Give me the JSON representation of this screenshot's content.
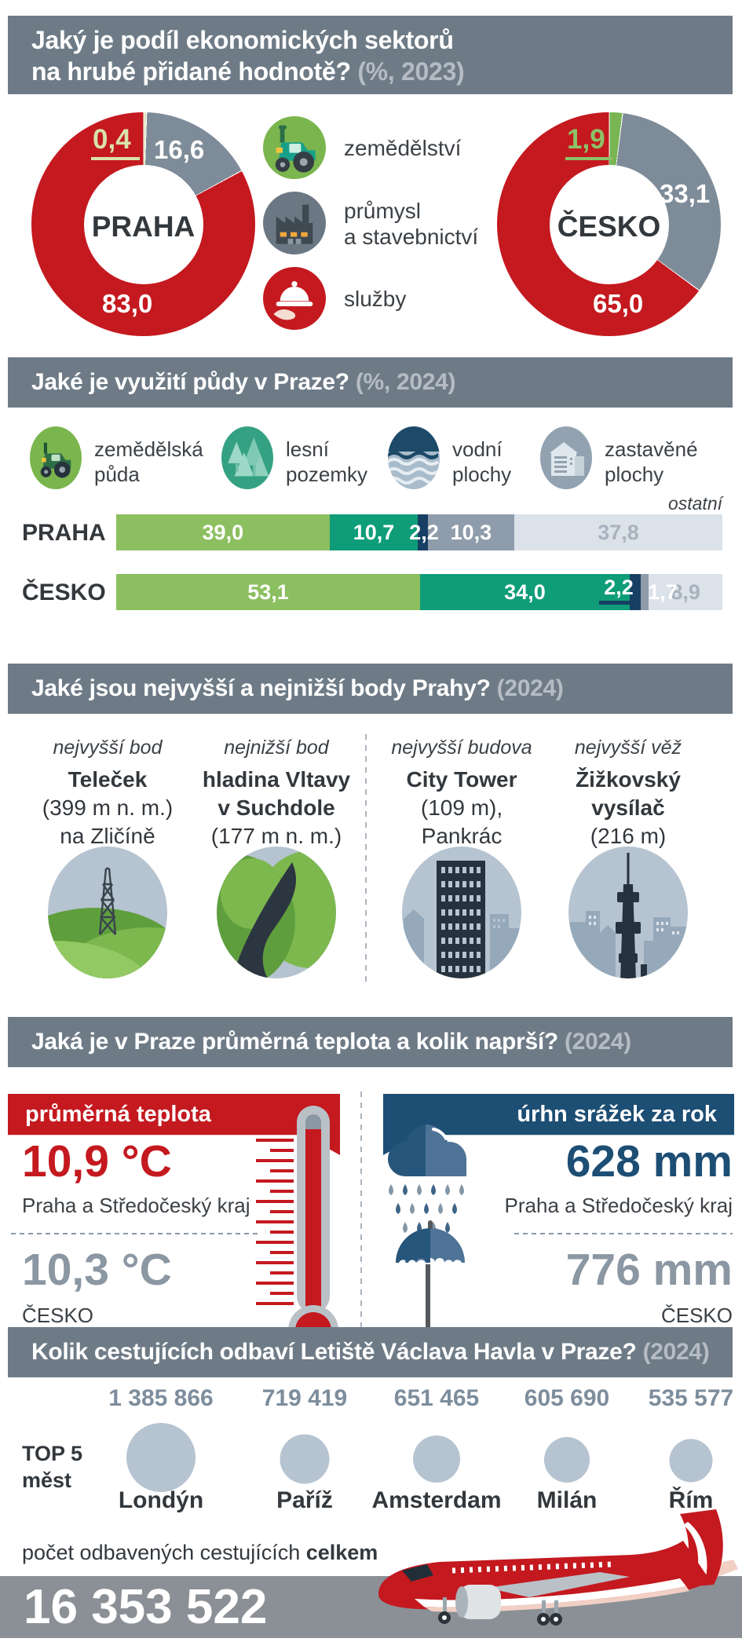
{
  "palette": {
    "band_gray": "#6e7b87",
    "band_year": "#b5bcc3",
    "red": "#c4191f",
    "slate_gray": "#7e8b98",
    "pale_green": "#dfe5bc",
    "pale_green_label": "#d9e2a8",
    "green": "#79b552",
    "green_label": "#8cc268",
    "bar_green": "#8cbf5f",
    "bar_teal": "#0f9d79",
    "bar_navy": "#173f63",
    "bar_gray": "#8e9cab",
    "bar_lightgray": "#dbe2e9",
    "muted_label": "#a9b3bf",
    "circle_bg": "#b6c3d0",
    "banner_blue": "#1d4e74",
    "number_gray": "#7d8d9c",
    "dark_text": "#33383d",
    "gray_text": "#8b97a2",
    "bottom_band": "#8a9095"
  },
  "s1": {
    "title_line1": "Jaký je podíl ekonomických sektorů",
    "title_line2": "na hrubé přidané hodnotě?",
    "year": "(%, 2023)",
    "praha": {
      "name": "PRAHA",
      "agri": "0,4",
      "industry": "16,6",
      "services": "83,0"
    },
    "cesko": {
      "name": "ČESKO",
      "agri": "1,9",
      "industry": "33,1",
      "services": "65,0"
    },
    "legend": {
      "agri": "zemědělství",
      "industry1": "průmysl",
      "industry2": "a stavebnictví",
      "services": "služby"
    }
  },
  "s2": {
    "title": "Jaké je využití půdy v Praze?",
    "year": "(%, 2024)",
    "legend": [
      {
        "line1": "zemědělská",
        "line2": "půda"
      },
      {
        "line1": "lesní",
        "line2": "pozemky"
      },
      {
        "line1": "vodní",
        "line2": "plochy"
      },
      {
        "line1": "zastavěné",
        "line2": "plochy"
      }
    ],
    "ostatni": "ostatní",
    "rows": [
      {
        "label": "PRAHA",
        "v0": "39,0",
        "v1": "10,7",
        "v2": "2,2",
        "v3": "10,3",
        "v4": "37,8"
      },
      {
        "label": "ČESKO",
        "v0": "53,1",
        "v1": "34,0",
        "v2": "2,2",
        "v3": "1,7",
        "v4": "8,9"
      }
    ]
  },
  "s3": {
    "title": "Jaké jsou nejvyšší a nejnižší body Prahy?",
    "year": "(2024)",
    "cols": [
      {
        "tag": "nejvyšší bod",
        "l1": "Teleček",
        "l2": "(399 m n. m.)",
        "l3": "na Zličíně"
      },
      {
        "tag": "nejnižší bod",
        "l1": "hladina Vltavy",
        "l2": "v Suchdole",
        "l3": "(177 m n. m.)"
      },
      {
        "tag": "nejvyšší budova",
        "l1": "City Tower",
        "l2": "(109 m),",
        "l3": "Pankrác"
      },
      {
        "tag": "nejvyšší věž",
        "l1": "Žižkovský",
        "l2": "vysílač",
        "l3": "(216 m)"
      }
    ]
  },
  "s4": {
    "title": "Jaká je v Praze průměrná teplota a kolik naprší?",
    "year": "(2024)",
    "temp_banner": "průměrná teplota",
    "rain_banner": "úrhn srážek za rok",
    "temp_praha": "10,9 °C",
    "temp_region": "Praha a Středočeský kraj",
    "temp_cesko": "10,3 °C",
    "cesko_label": "ČESKO",
    "rain_praha": "628 mm",
    "rain_region": "Praha a Středočeský kraj",
    "rain_cesko": "776 mm",
    "cesko_label2": "ČESKO"
  },
  "s5": {
    "title": "Kolik cestujících odbaví Letiště Václava Havla v Praze?",
    "year": "(2024)",
    "top5_line1": "TOP 5",
    "top5_line2": "měst",
    "cities": [
      {
        "value": "1 385 866",
        "name": "Londýn"
      },
      {
        "value": "719 419",
        "name": "Paříž"
      },
      {
        "value": "651 465",
        "name": "Amsterdam"
      },
      {
        "value": "605 690",
        "name": "Milán"
      },
      {
        "value": "535 577",
        "name": "Řím"
      }
    ],
    "total_label": "počet odbavených cestujících",
    "total_label_bold": "celkem",
    "total": "16 353 522"
  },
  "chart_data": [
    {
      "type": "pie",
      "variant": "donut",
      "title": "Podíl ekonomických sektorů na hrubé přidané hodnotě (%, 2023)",
      "legend": [
        "zemědělství",
        "průmysl a stavebnictví",
        "služby"
      ],
      "charts": [
        {
          "key": "praha",
          "name": "PRAHA",
          "values": [
            0.4,
            16.6,
            83.0
          ],
          "colors": [
            "#dfe5bc",
            "#7e8b98",
            "#c4191f"
          ]
        },
        {
          "key": "cesko",
          "name": "ČESKO",
          "values": [
            1.9,
            33.1,
            65.0
          ],
          "colors": [
            "#79b552",
            "#7e8b98",
            "#c4191f"
          ]
        }
      ]
    },
    {
      "type": "bar",
      "variant": "stacked-horizontal",
      "title": "Využití půdy (%, 2024)",
      "categories": [
        "zemědělská půda",
        "lesní pozemky",
        "vodní plochy",
        "zastavěné plochy",
        "ostatní"
      ],
      "colors": [
        "#8cbf5f",
        "#0f9d79",
        "#173f63",
        "#8e9cab",
        "#dbe2e9"
      ],
      "series": [
        {
          "name": "PRAHA",
          "values": [
            39.0,
            10.7,
            2.2,
            10.3,
            37.8
          ]
        },
        {
          "name": "ČESKO",
          "values": [
            53.1,
            34.0,
            2.2,
            1.7,
            8.9
          ]
        }
      ],
      "xlim": [
        0,
        100
      ]
    },
    {
      "type": "scatter",
      "variant": "bubble",
      "title": "TOP 5 měst podle počtu odbavených cestujících (2024)",
      "categories": [
        "Londýn",
        "Paříž",
        "Amsterdam",
        "Milán",
        "Řím"
      ],
      "values": [
        1385866,
        719419,
        651465,
        605690,
        535577
      ],
      "total": 16353522
    }
  ]
}
